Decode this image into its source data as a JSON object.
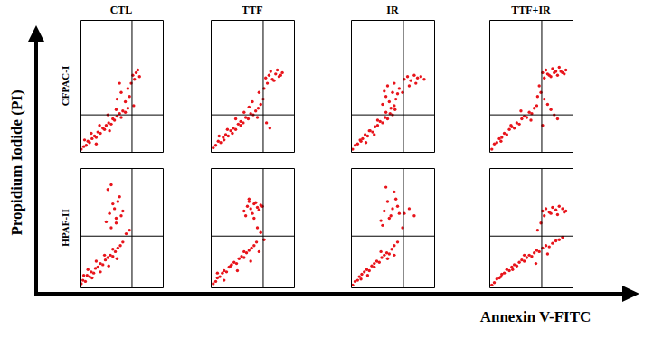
{
  "chart_data": {
    "type": "scatter",
    "x_label": "Annexin V-FITC",
    "y_label": "Propidium Iodide (PI)",
    "columns": [
      "CTL",
      "TTF",
      "IR",
      "TTF+IR"
    ],
    "rows": [
      "CFPAC-I",
      "HPAF-II"
    ],
    "xlim": [
      0,
      100
    ],
    "ylim": [
      0,
      100
    ],
    "tick_labels": false,
    "color": "#e8141b",
    "panels": [
      [
        {
          "gate_x": 63,
          "gate_y": 28,
          "x": [
            2,
            5,
            8,
            10,
            12,
            15,
            18,
            20,
            22,
            25,
            28,
            30,
            32,
            35,
            38,
            40,
            42,
            45,
            48,
            50,
            52,
            55,
            58,
            14,
            24,
            34,
            44,
            6,
            20,
            36,
            45,
            50,
            55,
            48,
            58,
            64,
            68,
            66,
            70,
            72,
            62,
            60,
            65
          ],
          "y": [
            2,
            4,
            5,
            8,
            7,
            10,
            12,
            11,
            15,
            14,
            18,
            17,
            20,
            22,
            21,
            25,
            24,
            27,
            29,
            26,
            31,
            30,
            33,
            14,
            20,
            28,
            32,
            9,
            6,
            16,
            40,
            45,
            38,
            52,
            48,
            58,
            60,
            55,
            62,
            57,
            52,
            42,
            35
          ]
        },
        {
          "gate_x": 63,
          "gate_y": 28,
          "x": [
            3,
            6,
            9,
            12,
            15,
            18,
            21,
            24,
            27,
            30,
            33,
            36,
            39,
            42,
            45,
            48,
            51,
            54,
            57,
            60,
            10,
            20,
            30,
            40,
            50,
            16,
            26,
            36,
            46,
            56,
            66,
            70,
            74,
            78,
            82,
            86,
            68,
            72,
            76,
            80,
            84,
            64,
            67,
            71,
            63,
            58
          ],
          "y": [
            3,
            5,
            8,
            7,
            11,
            13,
            12,
            16,
            18,
            17,
            21,
            23,
            22,
            26,
            25,
            29,
            28,
            31,
            33,
            36,
            12,
            17,
            25,
            30,
            38,
            9,
            14,
            20,
            34,
            26,
            56,
            58,
            55,
            59,
            57,
            60,
            52,
            61,
            54,
            62,
            58,
            48,
            22,
            18,
            40,
            45
          ]
        },
        {
          "gate_x": 63,
          "gate_y": 28,
          "x": [
            2,
            5,
            8,
            11,
            14,
            17,
            20,
            23,
            26,
            29,
            32,
            35,
            38,
            41,
            44,
            47,
            50,
            53,
            12,
            22,
            32,
            42,
            52,
            18,
            28,
            38,
            42,
            46,
            50,
            54,
            58,
            44,
            48,
            52,
            56,
            40,
            64,
            68,
            72,
            76,
            80,
            84,
            88,
            70,
            78,
            62
          ],
          "y": [
            2,
            5,
            6,
            9,
            10,
            13,
            12,
            16,
            15,
            19,
            20,
            23,
            22,
            26,
            25,
            29,
            28,
            32,
            8,
            16,
            24,
            30,
            35,
            7,
            13,
            36,
            42,
            38,
            45,
            40,
            48,
            50,
            33,
            52,
            44,
            46,
            55,
            57,
            54,
            58,
            56,
            57,
            55,
            50,
            52,
            45
          ]
        },
        {
          "gate_x": 63,
          "gate_y": 28,
          "x": [
            3,
            6,
            9,
            12,
            15,
            18,
            21,
            24,
            27,
            30,
            33,
            36,
            39,
            42,
            45,
            48,
            51,
            54,
            57,
            14,
            26,
            38,
            50,
            64,
            68,
            72,
            76,
            80,
            84,
            88,
            92,
            66,
            70,
            74,
            78,
            82,
            86,
            90,
            62,
            66,
            70,
            74,
            78,
            82,
            64,
            60,
            58
          ],
          "y": [
            2,
            6,
            7,
            10,
            11,
            14,
            13,
            17,
            19,
            18,
            22,
            21,
            25,
            27,
            26,
            30,
            29,
            33,
            35,
            8,
            20,
            31,
            24,
            60,
            62,
            58,
            63,
            61,
            64,
            60,
            62,
            56,
            59,
            57,
            60,
            58,
            61,
            59,
            45,
            40,
            36,
            32,
            28,
            25,
            20,
            50,
            42
          ]
        }
      ],
      [
        {
          "gate_x": 63,
          "gate_y": 43,
          "x": [
            2,
            4,
            7,
            9,
            12,
            14,
            17,
            19,
            22,
            25,
            28,
            31,
            34,
            37,
            40,
            43,
            46,
            49,
            52,
            5,
            10,
            15,
            20,
            25,
            30,
            35,
            40,
            45,
            32,
            36,
            40,
            44,
            48,
            52,
            34,
            38,
            42,
            46,
            50,
            38,
            44,
            56,
            60
          ],
          "y": [
            3,
            6,
            5,
            10,
            9,
            13,
            12,
            16,
            17,
            20,
            19,
            23,
            25,
            27,
            26,
            30,
            33,
            35,
            38,
            10,
            15,
            8,
            22,
            13,
            27,
            18,
            32,
            24,
            55,
            62,
            70,
            58,
            76,
            64,
            82,
            50,
            66,
            72,
            60,
            86,
            54,
            45,
            48
          ]
        },
        {
          "gate_x": 63,
          "gate_y": 43,
          "x": [
            3,
            6,
            8,
            11,
            14,
            16,
            19,
            22,
            25,
            28,
            31,
            34,
            37,
            40,
            43,
            46,
            49,
            52,
            55,
            8,
            16,
            24,
            32,
            40,
            48,
            40,
            44,
            48,
            52,
            56,
            60,
            42,
            46,
            50,
            54,
            58,
            62,
            46,
            52,
            56,
            60,
            64,
            58
          ],
          "y": [
            3,
            5,
            8,
            9,
            12,
            14,
            13,
            17,
            19,
            21,
            20,
            24,
            26,
            25,
            29,
            31,
            33,
            35,
            38,
            12,
            6,
            18,
            14,
            30,
            22,
            64,
            68,
            66,
            70,
            67,
            69,
            60,
            72,
            62,
            71,
            65,
            68,
            74,
            58,
            50,
            46,
            40,
            30
          ]
        },
        {
          "gate_x": 63,
          "gate_y": 43,
          "x": [
            2,
            5,
            8,
            10,
            13,
            16,
            19,
            22,
            25,
            28,
            31,
            34,
            37,
            40,
            43,
            46,
            49,
            52,
            56,
            12,
            20,
            28,
            36,
            44,
            52,
            36,
            40,
            44,
            48,
            52,
            56,
            38,
            42,
            46,
            50,
            54,
            58,
            64,
            70,
            76,
            62
          ],
          "y": [
            2,
            5,
            6,
            9,
            11,
            13,
            15,
            14,
            18,
            20,
            22,
            21,
            25,
            27,
            29,
            28,
            32,
            35,
            38,
            7,
            10,
            17,
            30,
            24,
            27,
            56,
            64,
            72,
            60,
            80,
            68,
            52,
            84,
            58,
            66,
            74,
            62,
            62,
            66,
            60,
            50
          ]
        },
        {
          "gate_x": 63,
          "gate_y": 43,
          "x": [
            3,
            6,
            9,
            12,
            15,
            18,
            21,
            24,
            27,
            30,
            33,
            36,
            39,
            42,
            45,
            48,
            51,
            54,
            57,
            60,
            64,
            68,
            72,
            76,
            80,
            84,
            88,
            14,
            28,
            42,
            56,
            70,
            64,
            68,
            72,
            76,
            80,
            84,
            88,
            92,
            66,
            74,
            82,
            90,
            58,
            62
          ],
          "y": [
            2,
            4,
            7,
            8,
            11,
            12,
            15,
            14,
            17,
            19,
            18,
            21,
            23,
            22,
            25,
            27,
            26,
            29,
            31,
            30,
            33,
            35,
            34,
            37,
            39,
            40,
            42,
            9,
            15,
            27,
            20,
            28,
            64,
            66,
            63,
            67,
            65,
            68,
            66,
            64,
            60,
            62,
            61,
            63,
            48,
            54
          ]
        }
      ]
    ]
  }
}
